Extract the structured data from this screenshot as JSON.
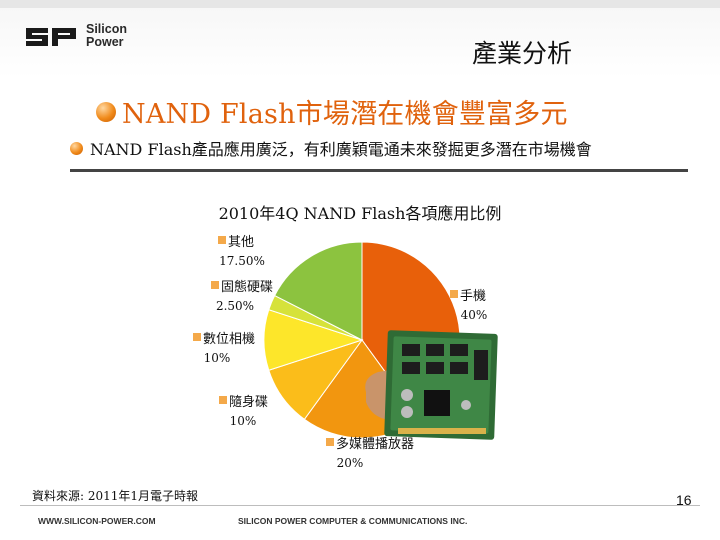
{
  "slide": {
    "logo_line1": "Silicon",
    "logo_line2": "Power",
    "logo_mark": "SP",
    "section": "產業分析",
    "headline": "NAND Flash市場潛在機會豐富多元",
    "subheadline": "NAND Flash產品應用廣泛，有利廣穎電通未來發掘更多潛在市場機會",
    "source": "資料來源: 2011年1月電子時報",
    "page_number": "16",
    "footer_left": "WWW.SILICON-POWER.COM",
    "footer_right": "SILICON POWER COMPUTER & COMMUNICATIONS INC.",
    "accent_color": "#e0620d"
  },
  "chart_data": {
    "type": "pie",
    "title": "2010年4Q NAND Flash各項應用比例",
    "slices": [
      {
        "label": "手機",
        "value": 40,
        "pct_label": "40%",
        "color": "#e8600a"
      },
      {
        "label": "多媒體播放器",
        "value": 20,
        "pct_label": "20%",
        "color": "#f2960f"
      },
      {
        "label": "隨身碟",
        "value": 10,
        "pct_label": "10%",
        "color": "#fbbd1a"
      },
      {
        "label": "數位相機",
        "value": 10,
        "pct_label": "10%",
        "color": "#fde62a"
      },
      {
        "label": "固態硬碟",
        "value": 2.5,
        "pct_label": "2.50%",
        "color": "#d6e23a"
      },
      {
        "label": "其他",
        "value": 17.5,
        "pct_label": "17.50%",
        "color": "#8cc33f"
      }
    ]
  }
}
